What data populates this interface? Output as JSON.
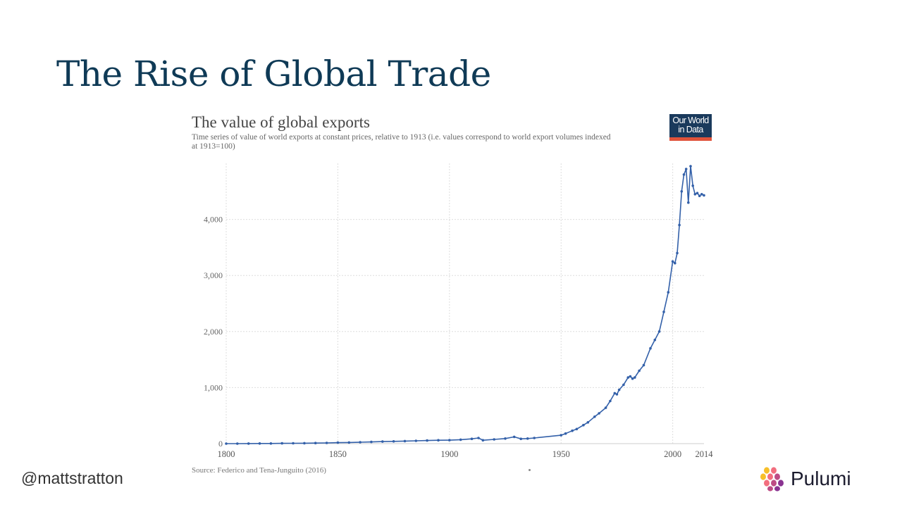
{
  "slide": {
    "title": "The Rise of Global Trade",
    "handle": "@mattstratton",
    "brand": "Pulumi"
  },
  "logo": {
    "line1": "Our World",
    "line2": "in Data"
  },
  "colors": {
    "title": "#0f3a56",
    "series": "#3360a9",
    "grid": "#dddddd",
    "logo_bg": "#1a3a5c",
    "logo_accent": "#e0533a"
  },
  "chart_data": {
    "type": "line",
    "title": "The value of global exports",
    "subtitle": "Time series of value of world exports at constant prices, relative to 1913 (i.e. values correspond to world export volumes indexed at 1913=100)",
    "source": "Source: Federico and Tena-Junguito (2016)",
    "xlabel": "",
    "ylabel": "",
    "xlim": [
      1800,
      2014
    ],
    "ylim": [
      0,
      5000
    ],
    "x_ticks": [
      1800,
      1850,
      1900,
      1950,
      2000,
      2014
    ],
    "y_ticks": [
      0,
      1000,
      2000,
      3000,
      4000
    ],
    "y_tick_labels": [
      "0",
      "1,000",
      "2,000",
      "3,000",
      "4,000"
    ],
    "grid": true,
    "series": [
      {
        "x": [
          1800,
          1805,
          1810,
          1815,
          1820,
          1825,
          1830,
          1835,
          1840,
          1845,
          1850,
          1855,
          1860,
          1865,
          1870,
          1875,
          1880,
          1885,
          1890,
          1895,
          1900,
          1905,
          1910,
          1913,
          1915,
          1920,
          1925,
          1929,
          1932,
          1935,
          1938,
          1950,
          1952,
          1955,
          1957,
          1960,
          1962,
          1965,
          1967,
          1970,
          1972,
          1974,
          1975,
          1976,
          1978,
          1980,
          1981,
          1982,
          1983,
          1985,
          1987,
          1990,
          1992,
          1994,
          1996,
          1998,
          2000,
          2001,
          2002,
          2003,
          2004,
          2005,
          2006,
          2007,
          2008,
          2009,
          2010,
          2011,
          2012,
          2013,
          2014
        ],
        "y": [
          0,
          0,
          1,
          2,
          3,
          5,
          6,
          8,
          10,
          13,
          17,
          20,
          25,
          30,
          36,
          40,
          45,
          50,
          55,
          60,
          62,
          70,
          85,
          100,
          60,
          75,
          90,
          120,
          85,
          90,
          100,
          150,
          180,
          230,
          260,
          330,
          380,
          480,
          540,
          640,
          760,
          900,
          880,
          960,
          1050,
          1180,
          1200,
          1160,
          1180,
          1300,
          1400,
          1700,
          1850,
          2000,
          2350,
          2700,
          3250,
          3220,
          3400,
          3900,
          4500,
          4800,
          4900,
          4300,
          4950,
          4600,
          4450,
          4470,
          4420,
          4450,
          4430
        ]
      }
    ]
  }
}
